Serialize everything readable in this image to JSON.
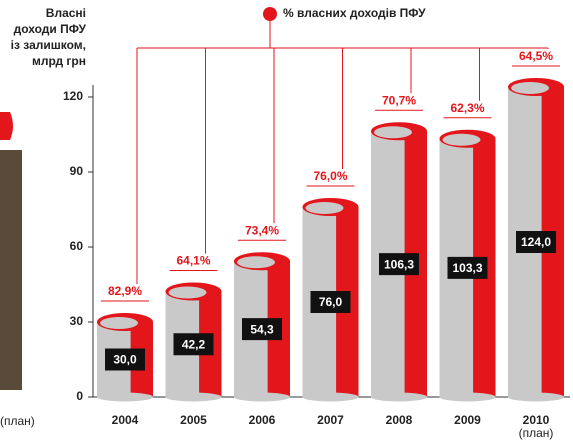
{
  "chart_data": {
    "type": "cylinder-bar",
    "y_axis_title": [
      "Власні",
      "доходи ПФУ",
      "із залишком,",
      "млрд грн"
    ],
    "legend": "% власних доходів ПФУ",
    "categories": [
      "2004",
      "2005",
      "2006",
      "2007",
      "2008",
      "2009",
      "2010 (план)"
    ],
    "values": [
      30.0,
      42.2,
      54.3,
      76.0,
      106.3,
      103.3,
      124.0
    ],
    "value_labels": [
      "30,0",
      "42,2",
      "54,3",
      "76,0",
      "106,3",
      "103,3",
      "124,0"
    ],
    "share": [
      82.9,
      64.1,
      73.4,
      76.0,
      70.7,
      62.3,
      64.5
    ],
    "share_labels": [
      "82,9%",
      "64,1%",
      "73,4%",
      "76,0%",
      "70,7%",
      "62,3%",
      "64,5%"
    ],
    "color": "#c9c9c9",
    "accent_color": "#e3161c",
    "ylim": [
      0,
      130
    ],
    "yticks": [
      0,
      30,
      60,
      90,
      120
    ],
    "side_note": "(план)"
  }
}
